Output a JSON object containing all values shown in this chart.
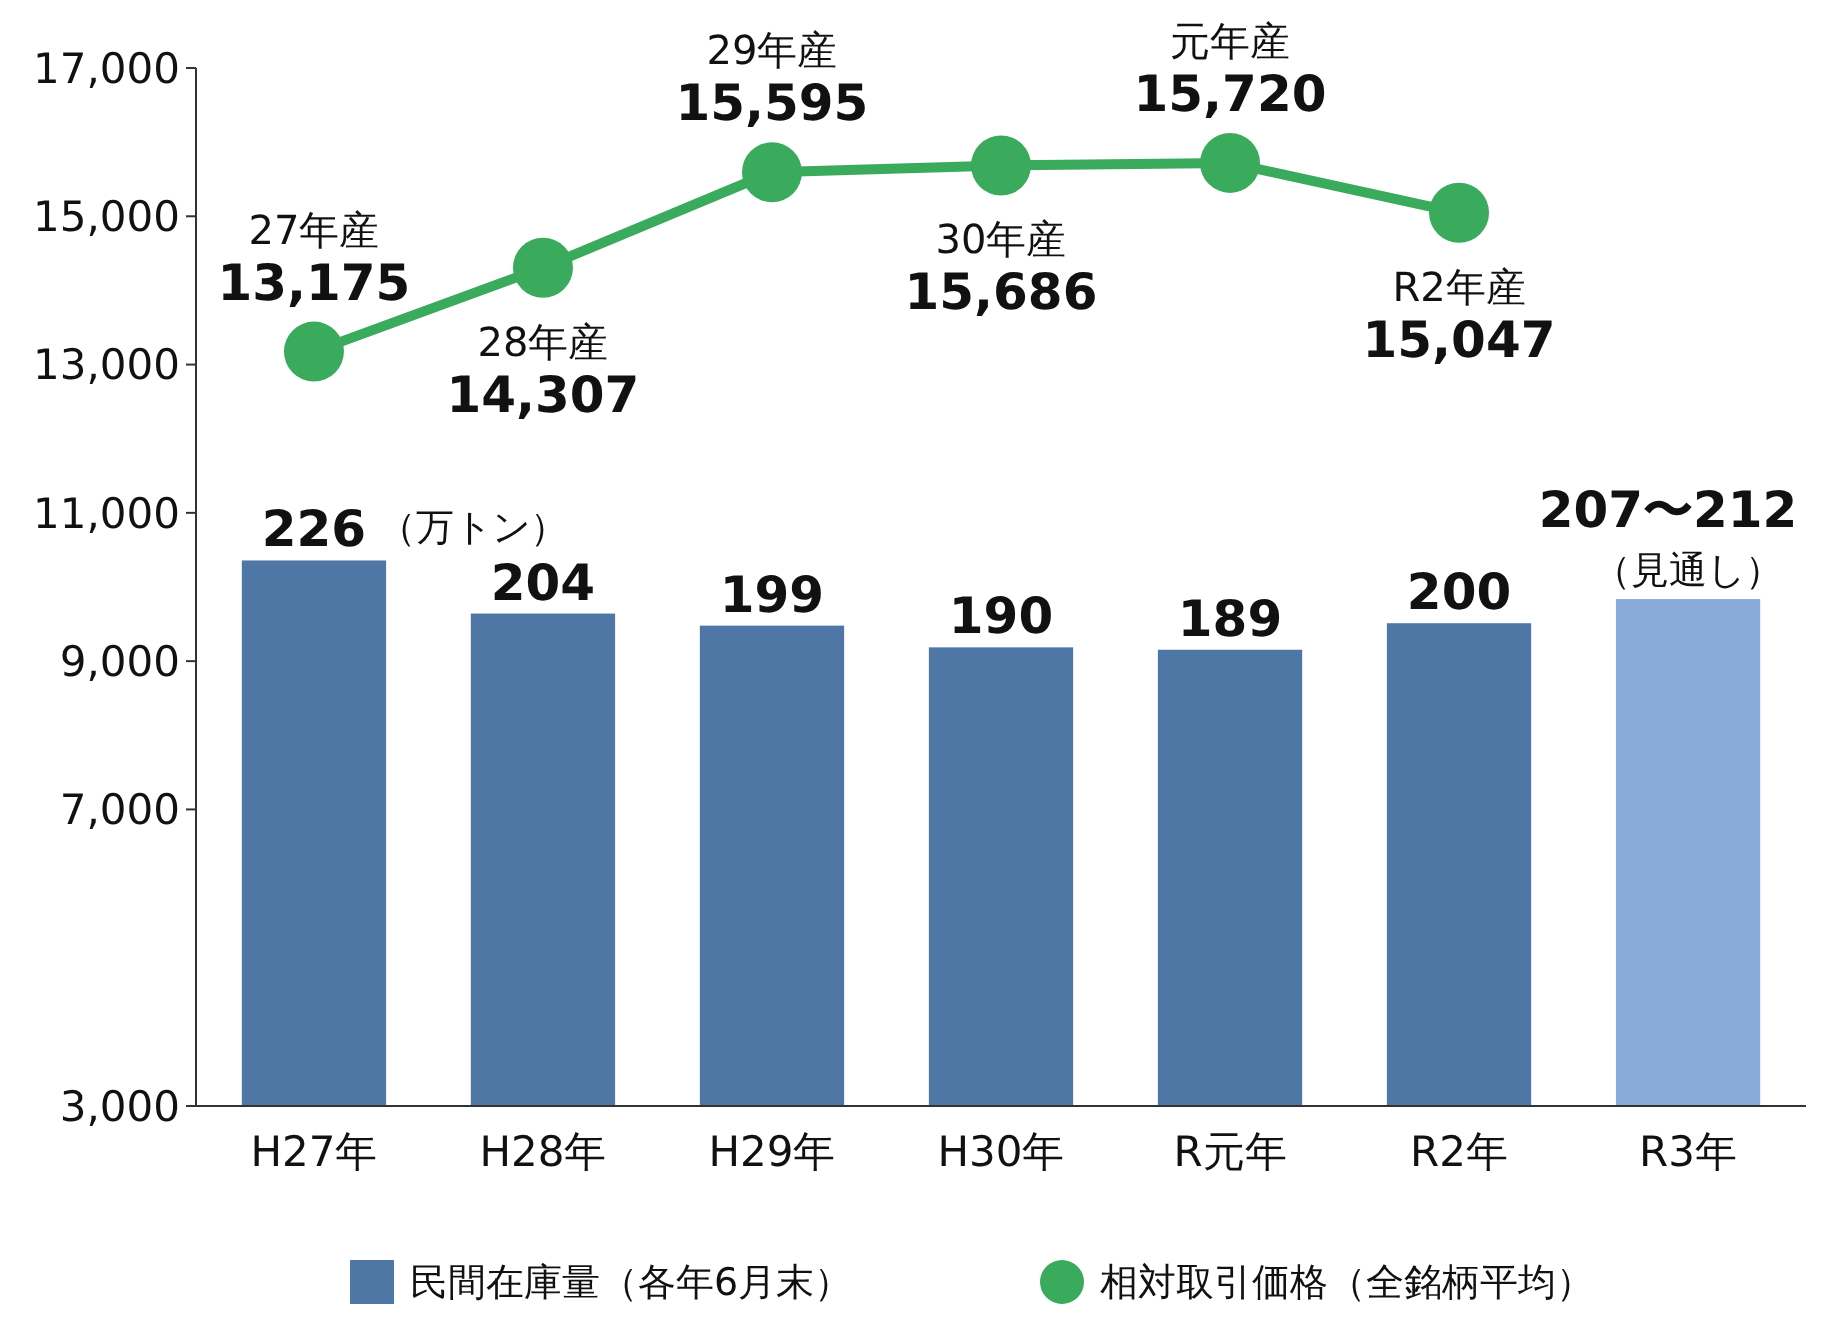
{
  "chart_data": {
    "type": "bar",
    "categories": [
      "H27年",
      "H28年",
      "H29年",
      "H30年",
      "R元年",
      "R2年",
      "R3年"
    ],
    "series": [
      {
        "name": "民間在庫量（各年6月末）",
        "color": "#4f77a5",
        "colors": [
          "#4f77a5",
          "#4f77a5",
          "#4f77a5",
          "#4f77a5",
          "#4f77a5",
          "#4f77a5",
          "#87aad8"
        ],
        "axis": "y2",
        "values": [
          226,
          204,
          199,
          190,
          189,
          200,
          210
        ],
        "value_labels": [
          "226",
          "204",
          "199",
          "190",
          "189",
          "200",
          null
        ]
      },
      {
        "type": "line",
        "name": "相対取引価格（全銘柄平均）",
        "color": "#3aaa5c",
        "values": [
          13175,
          14307,
          15595,
          15686,
          15720,
          15047,
          null
        ],
        "value_labels": [
          "13,175",
          "14,307",
          "15,595",
          "15,686",
          "15,720",
          "15,047",
          null
        ]
      }
    ],
    "ylim": [
      3000,
      17000
    ],
    "yticks": [
      {
        "value": 3000,
        "label": "3,000"
      },
      {
        "value": 7000,
        "label": "7,000"
      },
      {
        "value": 9000,
        "label": "9,000"
      },
      {
        "value": 11000,
        "label": "11,000"
      },
      {
        "value": 13000,
        "label": "13,000"
      },
      {
        "value": 15000,
        "label": "15,000"
      },
      {
        "value": 17000,
        "label": "17,000"
      }
    ],
    "y2lim": [
      0,
      430
    ],
    "tick_labels": "y",
    "marker": "circle",
    "legend": "bottom",
    "annotations": [
      "（万トン）",
      "（見通し）",
      "207〜212",
      {
        "text": "27年産",
        "x": "H27年",
        "y": 13175
      },
      {
        "text": "28年産",
        "x": "H28年",
        "y": 14307
      },
      {
        "text": "29年産",
        "x": "H29年",
        "y": 15595
      },
      {
        "text": "30年産",
        "x": "H30年",
        "y": 15686
      },
      {
        "text": "元年産",
        "x": "R元年",
        "y": 15720
      },
      {
        "text": "R2年産",
        "x": "R2年",
        "y": 15047
      }
    ]
  }
}
